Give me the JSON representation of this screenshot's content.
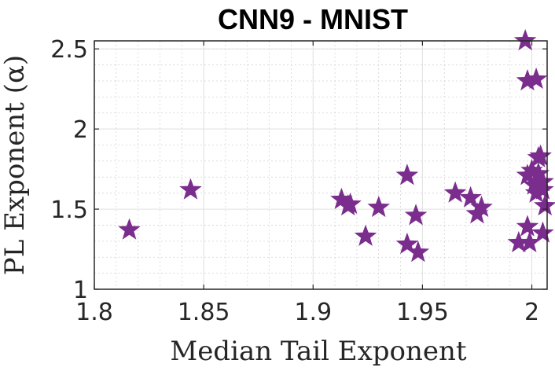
{
  "chart_data": {
    "type": "scatter",
    "title": "CNN9 - MNIST",
    "xlabel": "Median Tail Exponent",
    "ylabel": "PL Exponent (α)",
    "xlim": [
      1.8,
      2.007
    ],
    "ylim": [
      1.0,
      2.55
    ],
    "xticks": [
      1.8,
      1.85,
      1.9,
      1.95,
      2.0
    ],
    "xtick_labels": [
      "1.8",
      "1.85",
      "1.9",
      "1.95",
      "2"
    ],
    "yticks": [
      1.0,
      1.5,
      2.0,
      2.5
    ],
    "ytick_labels": [
      "1",
      "1.5",
      "2",
      "2.5"
    ],
    "grid": true,
    "minor_grid": true,
    "marker": "star",
    "color": "#7B2D8E",
    "series": [
      {
        "name": "",
        "points": [
          [
            1.816,
            1.37
          ],
          [
            1.844,
            1.62
          ],
          [
            1.913,
            1.56
          ],
          [
            1.916,
            1.52
          ],
          [
            1.917,
            1.53
          ],
          [
            1.924,
            1.33
          ],
          [
            1.93,
            1.51
          ],
          [
            1.943,
            1.71
          ],
          [
            1.943,
            1.28
          ],
          [
            1.947,
            1.46
          ],
          [
            1.948,
            1.23
          ],
          [
            1.965,
            1.6
          ],
          [
            1.972,
            1.57
          ],
          [
            1.975,
            1.47
          ],
          [
            1.977,
            1.51
          ],
          [
            1.994,
            1.29
          ],
          [
            1.997,
            2.55
          ],
          [
            1.998,
            2.3
          ],
          [
            1.998,
            1.71
          ],
          [
            1.998,
            1.39
          ],
          [
            1.999,
            1.29
          ],
          [
            2.0,
            1.74
          ],
          [
            2.001,
            1.65
          ],
          [
            2.002,
            2.31
          ],
          [
            2.002,
            1.6
          ],
          [
            2.003,
            1.72
          ],
          [
            2.003,
            1.82
          ],
          [
            2.004,
            1.83
          ],
          [
            2.005,
            1.67
          ],
          [
            2.005,
            1.62
          ],
          [
            2.005,
            1.35
          ],
          [
            2.006,
            1.52
          ]
        ]
      }
    ]
  }
}
